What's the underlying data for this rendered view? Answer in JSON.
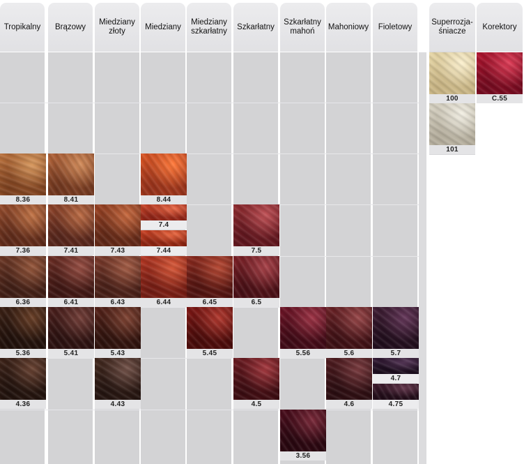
{
  "columns": [
    {
      "label": "Tropikalny"
    },
    {
      "label": "Brązowy"
    },
    {
      "label": "Miedziany\nzłoty"
    },
    {
      "label": "Miedziany"
    },
    {
      "label": "Miedziany\nszkarłatny"
    },
    {
      "label": "Szkarłatny"
    },
    {
      "label": "Szkarłatny\nmahoń"
    },
    {
      "label": "Mahoniowy"
    },
    {
      "label": "Fioletowy"
    }
  ],
  "special_columns": [
    {
      "label": "Superrozja-\nśniacze"
    },
    {
      "label": "Korektory"
    }
  ],
  "swatches": [
    {
      "code": "8.36",
      "col": 0,
      "row": 2,
      "span": 2,
      "colors": [
        "#b8703c",
        "#d99a60",
        "#7a3f1e"
      ]
    },
    {
      "code": "8.41",
      "col": 1,
      "row": 2,
      "colors": [
        "#b2643a",
        "#d28c5b",
        "#6c341d"
      ]
    },
    {
      "code": "8.44",
      "col": 3,
      "row": 2,
      "colors": [
        "#d95423",
        "#ff7a3c",
        "#92301a"
      ]
    },
    {
      "code": "7.36",
      "col": 0,
      "row": 3,
      "colors": [
        "#934b2c",
        "#c27548",
        "#5a2818"
      ]
    },
    {
      "code": "7.41",
      "col": 1,
      "row": 3,
      "colors": [
        "#8e442a",
        "#bd6e47",
        "#51231a"
      ]
    },
    {
      "code": "7.43",
      "col": 2,
      "row": 3,
      "colors": [
        "#9a4324",
        "#c76a40",
        "#5c2616"
      ]
    },
    {
      "code": "7.4",
      "col": 3,
      "row": 3,
      "split": "top",
      "colors": [
        "#c64428",
        "#ea6a48",
        "#8a2216"
      ]
    },
    {
      "code": "7.44",
      "col": 3,
      "row": 3,
      "split": "bottom",
      "colors": [
        "#c84124",
        "#ec6a43",
        "#86210f"
      ]
    },
    {
      "code": "7.5",
      "col": 5,
      "row": 3,
      "colors": [
        "#8f2c30",
        "#c05257",
        "#5b141c"
      ]
    },
    {
      "code": "6.36",
      "col": 0,
      "row": 4,
      "colors": [
        "#6b3725",
        "#96583d",
        "#3c1c14"
      ]
    },
    {
      "code": "6.41",
      "col": 1,
      "row": 4,
      "colors": [
        "#6a2d24",
        "#985045",
        "#3b1512"
      ]
    },
    {
      "code": "6.43",
      "col": 2,
      "row": 4,
      "colors": [
        "#7a3a2b",
        "#a45e47",
        "#431d16"
      ]
    },
    {
      "code": "6.44",
      "col": 3,
      "row": 4,
      "colors": [
        "#b23622",
        "#d85a3b",
        "#6e1a12"
      ]
    },
    {
      "code": "6.45",
      "col": 4,
      "row": 4,
      "colors": [
        "#8b2a1e",
        "#b84b36",
        "#4c120f"
      ]
    },
    {
      "code": "6.5",
      "col": 5,
      "row": 4,
      "colors": [
        "#7c2127",
        "#a8434a",
        "#440e14"
      ]
    },
    {
      "code": "5.36",
      "col": 0,
      "row": 5,
      "colors": [
        "#3a2014",
        "#6a4028",
        "#1e0f0a"
      ]
    },
    {
      "code": "5.41",
      "col": 1,
      "row": 5,
      "colors": [
        "#4b1f1c",
        "#74403a",
        "#28100f"
      ]
    },
    {
      "code": "5.43",
      "col": 2,
      "row": 5,
      "colors": [
        "#542219",
        "#804535",
        "#2b110c"
      ]
    },
    {
      "code": "5.45",
      "col": 4,
      "row": 5,
      "colors": [
        "#7e1714",
        "#b23a30",
        "#440a09"
      ]
    },
    {
      "code": "5.56",
      "col": 6,
      "row": 5,
      "colors": [
        "#6d1426",
        "#9e3547",
        "#3b0914"
      ]
    },
    {
      "code": "5.6",
      "col": 7,
      "row": 5,
      "colors": [
        "#692125",
        "#98484a",
        "#3a0f13"
      ]
    },
    {
      "code": "5.7",
      "col": 8,
      "row": 5,
      "colors": [
        "#3e1d33",
        "#65385a",
        "#1e0c1a"
      ]
    },
    {
      "code": "4.36",
      "col": 0,
      "row": 6,
      "colors": [
        "#3c2218",
        "#6a4434",
        "#1f110c"
      ]
    },
    {
      "code": "4.43",
      "col": 2,
      "row": 6,
      "colors": [
        "#43291f",
        "#73534a",
        "#22130f"
      ]
    },
    {
      "code": "4.5",
      "col": 5,
      "row": 6,
      "colors": [
        "#6a1a20",
        "#a53a40",
        "#380b10"
      ]
    },
    {
      "code": "4.6",
      "col": 7,
      "row": 6,
      "colors": [
        "#4f1b1f",
        "#7a3c40",
        "#280c10"
      ]
    },
    {
      "code": "4.7",
      "col": 8,
      "row": 6,
      "split": "top",
      "colors": [
        "#331a35",
        "#58385a",
        "#180b1a"
      ]
    },
    {
      "code": "4.75",
      "col": 8,
      "row": 6,
      "split": "bottom",
      "colors": [
        "#3d1a2c",
        "#65394e",
        "#1e0b16"
      ]
    },
    {
      "code": "3.56",
      "col": 6,
      "row": 7,
      "colors": [
        "#4a0d1c",
        "#7a2a3a",
        "#25060e"
      ]
    }
  ],
  "special_swatches": [
    {
      "code": "100",
      "col": 0,
      "row": 0,
      "colors": [
        "#e6d6a7",
        "#fbf0cf",
        "#c6b282"
      ]
    },
    {
      "code": "C.55",
      "col": 1,
      "row": 0,
      "colors": [
        "#b0152f",
        "#de3e58",
        "#6f0a1e"
      ]
    },
    {
      "code": "101",
      "col": 0,
      "row": 1,
      "colors": [
        "#d6d1c2",
        "#f2efe4",
        "#b2ab9a"
      ]
    }
  ]
}
